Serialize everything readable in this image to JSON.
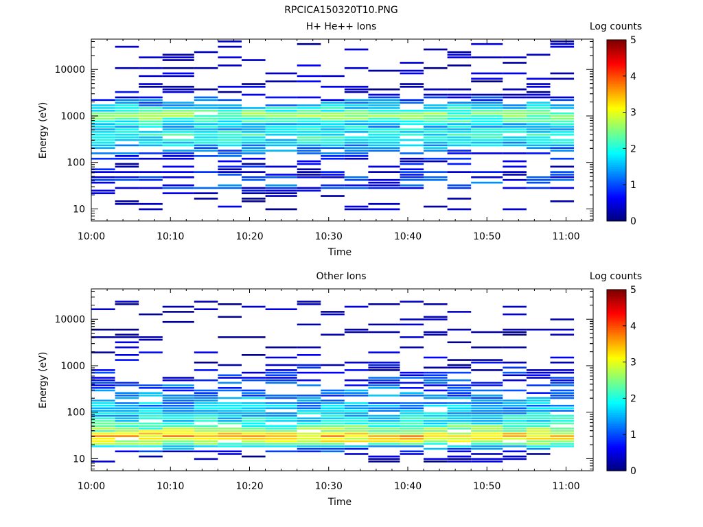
{
  "figure_title": "RPCICA150320T10.PNG",
  "chart_data": [
    {
      "type": "heatmap",
      "title": "H+ He++ Ions",
      "xlabel": "Time",
      "ylabel": "Energy (eV)",
      "y_scale": "log",
      "ylim": [
        5.5,
        45000
      ],
      "x_ticks": [
        "10:00",
        "10:10",
        "10:20",
        "10:30",
        "10:40",
        "10:50",
        "11:00"
      ],
      "y_ticks": [
        "10",
        "100",
        "1000",
        "10000"
      ],
      "time_bins": [
        "10:00",
        "10:03",
        "10:06",
        "10:09",
        "10:13",
        "10:16",
        "10:19",
        "10:22",
        "10:26",
        "10:29",
        "10:32",
        "10:35",
        "10:39",
        "10:42",
        "10:45",
        "10:48",
        "10:52",
        "10:55",
        "10:58",
        "11:01"
      ],
      "colorbar": {
        "label": "Log counts",
        "range": [
          0,
          5
        ],
        "ticks": [
          "0",
          "1",
          "2",
          "3",
          "4",
          "5"
        ]
      },
      "profile": [
        {
          "energy": 20,
          "log_counts": 0.1
        },
        {
          "energy": 30,
          "log_counts": 1.0
        },
        {
          "energy": 40,
          "log_counts": 0.8
        },
        {
          "energy": 100,
          "log_counts": 0.4
        },
        {
          "energy": 200,
          "log_counts": 1.3
        },
        {
          "energy": 350,
          "log_counts": 2.0
        },
        {
          "energy": 600,
          "log_counts": 1.6
        },
        {
          "energy": 1000,
          "log_counts": 2.6
        },
        {
          "energy": 3000,
          "log_counts": 0.3
        },
        {
          "energy": 10000,
          "log_counts": 0.2
        },
        {
          "energy": 40000,
          "log_counts": 0.1
        }
      ]
    },
    {
      "type": "heatmap",
      "title": "Other Ions",
      "xlabel": "Time",
      "ylabel": "Energy (eV)",
      "y_scale": "log",
      "ylim": [
        5.5,
        45000
      ],
      "x_ticks": [
        "10:00",
        "10:10",
        "10:20",
        "10:30",
        "10:40",
        "10:50",
        "11:00"
      ],
      "y_ticks": [
        "10",
        "100",
        "1000",
        "10000"
      ],
      "time_bins": [
        "10:00",
        "10:03",
        "10:06",
        "10:09",
        "10:13",
        "10:16",
        "10:19",
        "10:22",
        "10:26",
        "10:29",
        "10:32",
        "10:35",
        "10:39",
        "10:42",
        "10:45",
        "10:48",
        "10:52",
        "10:55",
        "10:58",
        "11:01"
      ],
      "colorbar": {
        "label": "Log counts",
        "range": [
          0,
          5
        ],
        "ticks": [
          "0",
          "1",
          "2",
          "3",
          "4",
          "5"
        ]
      },
      "profile": [
        {
          "energy": 12,
          "log_counts": 0.1
        },
        {
          "energy": 18,
          "log_counts": 1.6
        },
        {
          "energy": 22,
          "log_counts": 2.8
        },
        {
          "energy": 30,
          "log_counts": 3.4
        },
        {
          "energy": 40,
          "log_counts": 2.6
        },
        {
          "energy": 60,
          "log_counts": 1.9
        },
        {
          "energy": 100,
          "log_counts": 1.6
        },
        {
          "energy": 200,
          "log_counts": 1.3
        },
        {
          "energy": 500,
          "log_counts": 0.8
        },
        {
          "energy": 1000,
          "log_counts": 0.4
        },
        {
          "energy": 2000,
          "log_counts": 0.2
        },
        {
          "energy": 3000,
          "log_counts": 0.05
        }
      ]
    }
  ]
}
